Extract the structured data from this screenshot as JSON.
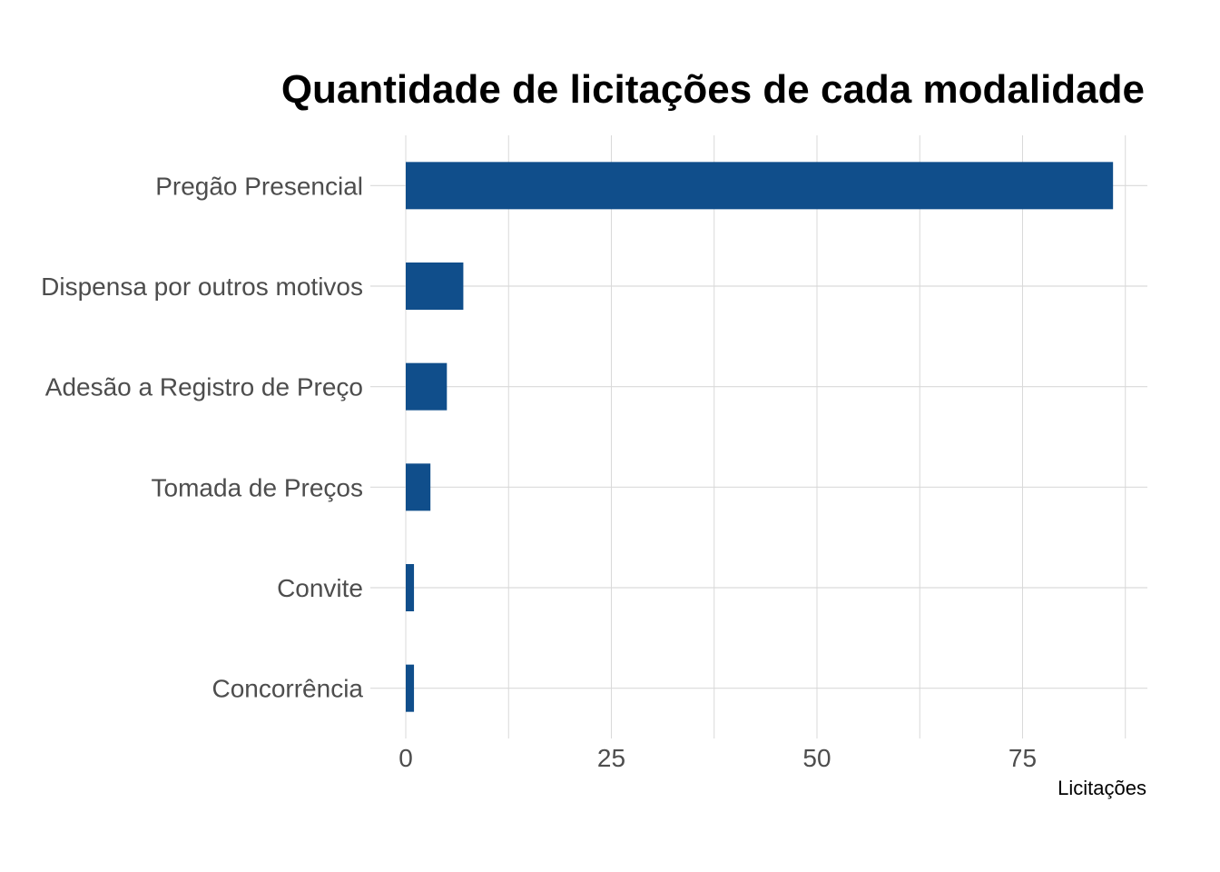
{
  "chart_data": {
    "type": "bar",
    "orientation": "horizontal",
    "title": "Quantidade de licitações de cada modalidade",
    "xlabel": "Licitações",
    "ylabel": "",
    "categories": [
      "Pregão Presencial",
      "Dispensa por outros motivos",
      "Adesão a Registro de Preço",
      "Tomada de Preços",
      "Convite",
      "Concorrência"
    ],
    "values": [
      86,
      7,
      5,
      3,
      1,
      1
    ],
    "xlim": [
      0,
      90
    ],
    "xticks": [
      0,
      25,
      50,
      75
    ],
    "xtick_labels": [
      "0",
      "25",
      "50",
      "75"
    ],
    "grid": true,
    "legend": "none",
    "colors": {
      "bar": "#104e8b",
      "grid": "#d9d9d9"
    }
  }
}
